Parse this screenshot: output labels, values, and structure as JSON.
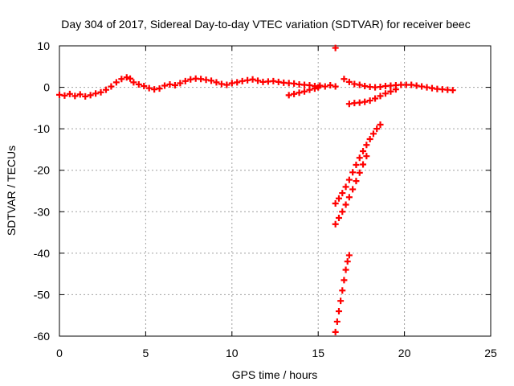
{
  "chart_data": {
    "type": "scatter",
    "title": "Day 304 of 2017, Sidereal Day-to-day VTEC variation (SDTVAR) for receiver beec",
    "xlabel": "GPS time / hours",
    "ylabel": "SDTVAR / TECUs",
    "xlim": [
      0,
      25
    ],
    "ylim": [
      -60,
      10
    ],
    "x_ticks": [
      "0",
      "5",
      "10",
      "15",
      "20",
      "25"
    ],
    "y_ticks": [
      "10",
      "0",
      "-10",
      "-20",
      "-30",
      "-40",
      "-50",
      "-60"
    ],
    "grid": true,
    "marker": "+",
    "series_color": "#ff0000",
    "series": [
      {
        "points": [
          [
            0.0,
            -1.8
          ],
          [
            0.3,
            -2.0
          ],
          [
            0.6,
            -1.6
          ],
          [
            0.9,
            -2.1
          ],
          [
            1.2,
            -1.7
          ],
          [
            1.5,
            -2.2
          ],
          [
            1.8,
            -1.9
          ],
          [
            2.1,
            -1.5
          ],
          [
            2.4,
            -1.2
          ],
          [
            2.7,
            -0.6
          ],
          [
            3.0,
            0.2
          ],
          [
            3.3,
            1.2
          ],
          [
            3.6,
            2.0
          ],
          [
            3.9,
            2.4
          ],
          [
            4.1,
            2.1
          ],
          [
            4.3,
            1.2
          ],
          [
            4.6,
            0.7
          ],
          [
            4.9,
            0.3
          ],
          [
            5.2,
            -0.2
          ],
          [
            5.5,
            -0.5
          ],
          [
            5.8,
            -0.3
          ],
          [
            6.1,
            0.4
          ],
          [
            6.4,
            0.7
          ],
          [
            6.7,
            0.5
          ],
          [
            7.0,
            1.0
          ],
          [
            7.3,
            1.5
          ],
          [
            7.6,
            1.9
          ],
          [
            7.9,
            2.1
          ],
          [
            8.2,
            2.0
          ],
          [
            8.5,
            1.8
          ],
          [
            8.8,
            1.6
          ],
          [
            9.1,
            1.2
          ],
          [
            9.4,
            0.8
          ],
          [
            9.7,
            0.6
          ],
          [
            10.0,
            1.0
          ],
          [
            10.3,
            1.2
          ],
          [
            10.6,
            1.5
          ],
          [
            10.9,
            1.7
          ],
          [
            11.2,
            1.9
          ],
          [
            11.5,
            1.6
          ],
          [
            11.8,
            1.3
          ],
          [
            12.1,
            1.4
          ],
          [
            12.4,
            1.5
          ],
          [
            12.7,
            1.3
          ],
          [
            13.0,
            1.1
          ],
          [
            13.3,
            1.0
          ],
          [
            13.6,
            0.9
          ],
          [
            13.9,
            0.7
          ],
          [
            14.2,
            0.6
          ],
          [
            14.5,
            0.5
          ],
          [
            14.8,
            0.3
          ],
          [
            15.1,
            0.4
          ],
          [
            15.4,
            0.2
          ],
          [
            15.7,
            0.5
          ],
          [
            16.0,
            0.2
          ],
          [
            13.3,
            -1.9
          ],
          [
            13.6,
            -1.6
          ],
          [
            13.9,
            -1.3
          ],
          [
            14.2,
            -1.0
          ],
          [
            14.5,
            -0.6
          ],
          [
            14.8,
            -0.3
          ],
          [
            15.0,
            0.0
          ],
          [
            16.0,
            9.5
          ],
          [
            16.5,
            2.0
          ],
          [
            16.8,
            1.3
          ],
          [
            17.1,
            0.8
          ],
          [
            17.4,
            0.6
          ],
          [
            17.7,
            0.3
          ],
          [
            18.0,
            0.1
          ],
          [
            18.3,
            0.0
          ],
          [
            18.6,
            0.1
          ],
          [
            18.9,
            0.3
          ],
          [
            19.2,
            0.4
          ],
          [
            19.5,
            0.5
          ],
          [
            19.8,
            0.6
          ],
          [
            20.1,
            0.6
          ],
          [
            20.4,
            0.6
          ],
          [
            20.7,
            0.4
          ],
          [
            21.0,
            0.2
          ],
          [
            21.3,
            0.0
          ],
          [
            21.6,
            -0.2
          ],
          [
            21.9,
            -0.4
          ],
          [
            22.2,
            -0.5
          ],
          [
            22.5,
            -0.6
          ],
          [
            22.8,
            -0.7
          ],
          [
            16.8,
            -4.0
          ],
          [
            17.1,
            -3.8
          ],
          [
            17.4,
            -3.7
          ],
          [
            17.7,
            -3.5
          ],
          [
            18.0,
            -3.2
          ],
          [
            18.3,
            -2.7
          ],
          [
            18.6,
            -2.1
          ],
          [
            18.9,
            -1.5
          ],
          [
            19.2,
            -1.0
          ],
          [
            19.5,
            -0.5
          ],
          [
            16.0,
            -28.0
          ],
          [
            16.2,
            -26.8
          ],
          [
            16.4,
            -25.5
          ],
          [
            16.6,
            -24.0
          ],
          [
            16.8,
            -22.3
          ],
          [
            17.0,
            -20.5
          ],
          [
            17.2,
            -18.7
          ],
          [
            17.4,
            -17.0
          ],
          [
            17.6,
            -15.4
          ],
          [
            17.8,
            -13.9
          ],
          [
            18.0,
            -12.5
          ],
          [
            18.2,
            -11.2
          ],
          [
            18.4,
            -10.0
          ],
          [
            18.6,
            -9.0
          ],
          [
            16.0,
            -33.0
          ],
          [
            16.2,
            -31.5
          ],
          [
            16.4,
            -30.0
          ],
          [
            16.6,
            -28.3
          ],
          [
            16.8,
            -26.5
          ],
          [
            17.0,
            -24.6
          ],
          [
            17.2,
            -22.6
          ],
          [
            17.4,
            -20.6
          ],
          [
            17.6,
            -18.6
          ],
          [
            17.8,
            -16.6
          ],
          [
            16.0,
            -59.0
          ],
          [
            16.1,
            -56.5
          ],
          [
            16.2,
            -54.0
          ],
          [
            16.3,
            -51.5
          ],
          [
            16.4,
            -49.0
          ],
          [
            16.5,
            -46.5
          ],
          [
            16.6,
            -44.0
          ],
          [
            16.7,
            -42.0
          ],
          [
            16.8,
            -40.5
          ]
        ]
      }
    ]
  }
}
